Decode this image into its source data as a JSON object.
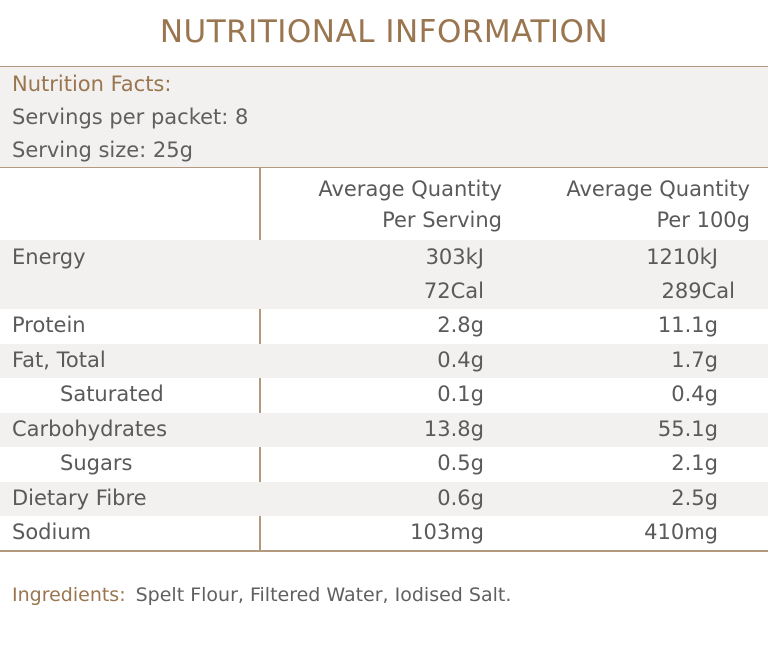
{
  "title": "NUTRITIONAL INFORMATION",
  "facts": {
    "heading": "Nutrition Facts:",
    "servings": "Servings per packet: 8",
    "serving_size": "Serving size: 25g"
  },
  "columns": {
    "per_serving": [
      "Average Quantity",
      "Per Serving"
    ],
    "per_100g": [
      "Average Quantity",
      "Per 100g"
    ]
  },
  "rows": [
    {
      "name": "Energy",
      "per_serving": "303kJ",
      "per_100g": "1210kJ",
      "per_serving_2": "72Cal",
      "per_100g_2": "289Cal"
    },
    {
      "name": "Protein",
      "per_serving": "2.8g",
      "per_100g": "11.1g"
    },
    {
      "name": "Fat, Total",
      "per_serving": "0.4g",
      "per_100g": "1.7g"
    },
    {
      "name": "Saturated",
      "per_serving": "0.1g",
      "per_100g": "0.4g"
    },
    {
      "name": "Carbohydrates",
      "per_serving": "13.8g",
      "per_100g": "55.1g"
    },
    {
      "name": "Sugars",
      "per_serving": "0.5g",
      "per_100g": "2.1g"
    },
    {
      "name": "Dietary Fibre",
      "per_serving": "0.6g",
      "per_100g": "2.5g"
    },
    {
      "name": "Sodium",
      "per_serving": "103mg",
      "per_100g": "410mg"
    }
  ],
  "ingredients": {
    "label": "Ingredients:",
    "text": "Spelt Flour, Filtered Water, Iodised Salt."
  }
}
